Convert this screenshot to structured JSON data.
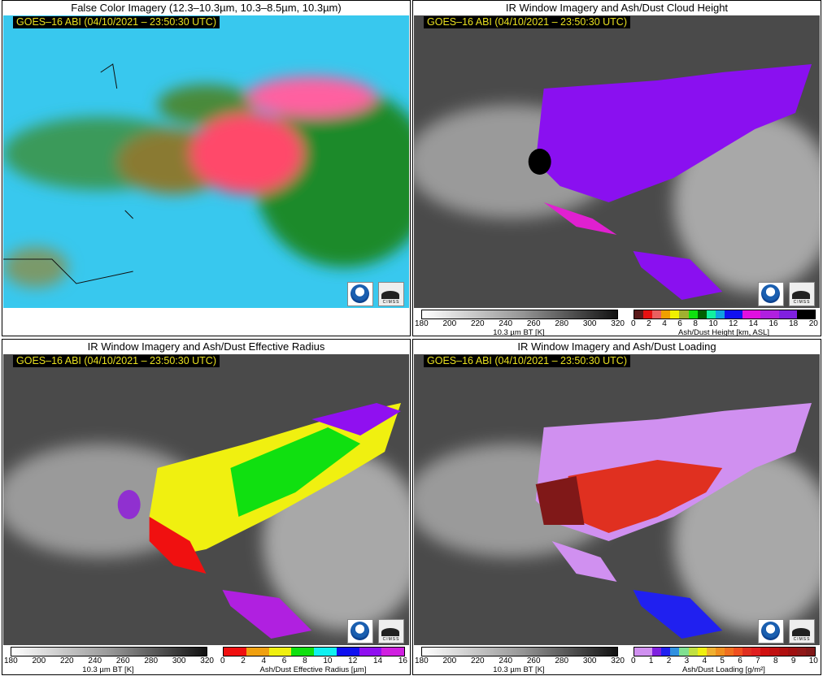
{
  "timestamp": "GOES–16 ABI (04/10/2021 – 23:50:30 UTC)",
  "logos": {
    "noaa": "NOAA",
    "cimss": "CIMSS"
  },
  "panels": [
    {
      "title": "False Color Imagery (12.3–10.3µm, 10.3–8.5µm, 10.3µm)"
    },
    {
      "title": "IR Window Imagery and Ash/Dust Cloud Height"
    },
    {
      "title": "IR Window Imagery and Ash/Dust Effective Radius"
    },
    {
      "title": "IR Window Imagery and Ash/Dust Loading"
    }
  ],
  "bt_colorbar": {
    "label": "10.3 µm BT [K]",
    "ticks": [
      "180",
      "200",
      "220",
      "240",
      "260",
      "280",
      "300",
      "320"
    ],
    "colors": [
      "#ffffff",
      "#202020"
    ]
  },
  "height_colorbar": {
    "label": "Ash/Dust Height [km, ASL]",
    "ticks": [
      "0",
      "2",
      "4",
      "6",
      "8",
      "10",
      "12",
      "14",
      "16",
      "18",
      "20"
    ],
    "colors": [
      "#5a1a1a",
      "#e81010",
      "#e86060",
      "#f0a000",
      "#f0f000",
      "#a0b030",
      "#10e010",
      "#006000",
      "#10f0a0",
      "#10a0e0",
      "#1010f0",
      "#1010f0",
      "#e010e0",
      "#e010e0",
      "#b020e0",
      "#b020e0",
      "#8020e0",
      "#8020e0",
      "#000000",
      "#000000"
    ]
  },
  "radius_colorbar": {
    "label": "Ash/Dust Effective Radius [µm]",
    "ticks": [
      "0",
      "2",
      "4",
      "6",
      "8",
      "10",
      "12",
      "14",
      "16"
    ],
    "colors": [
      "#f01010",
      "#f0a010",
      "#f0f010",
      "#10e010",
      "#10f0f0",
      "#1010f0",
      "#9010f0",
      "#d020e0"
    ]
  },
  "loading_colorbar": {
    "label": "Ash/Dust Loading [g/m²]",
    "ticks": [
      "0",
      "1",
      "2",
      "3",
      "4",
      "5",
      "6",
      "7",
      "8",
      "9",
      "10"
    ],
    "colors": [
      "#d090f0",
      "#d090f0",
      "#8020e0",
      "#2020f0",
      "#3090e0",
      "#80e090",
      "#c0e040",
      "#f0f010",
      "#f0b030",
      "#f09020",
      "#f07020",
      "#f05020",
      "#e03020",
      "#e02020",
      "#d01010",
      "#c01010",
      "#b01010",
      "#a01010",
      "#901818",
      "#801818"
    ]
  }
}
